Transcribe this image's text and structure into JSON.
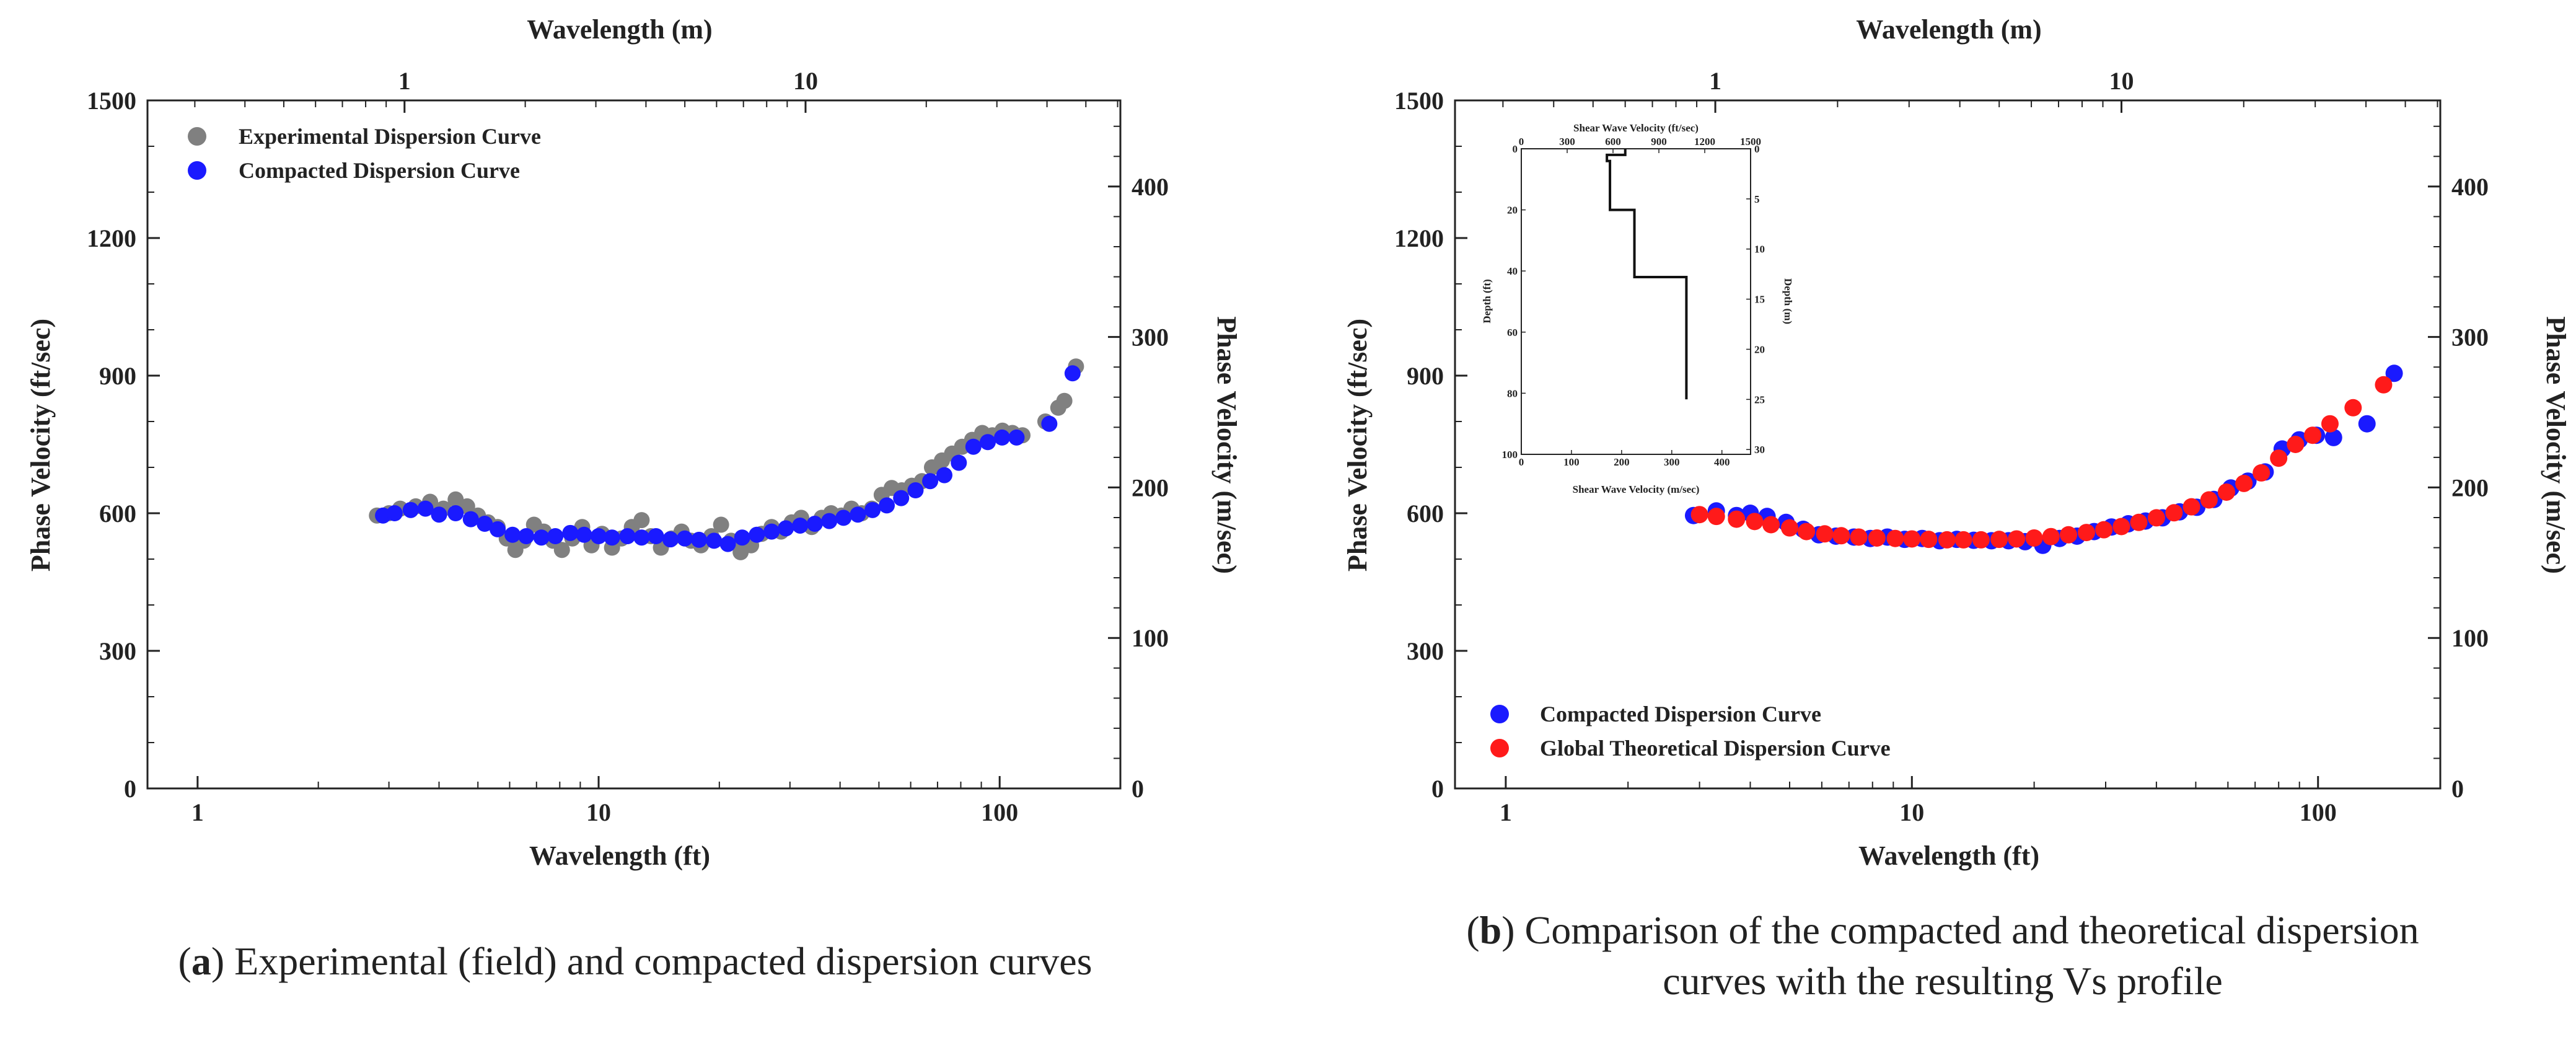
{
  "chart_data": [
    {
      "id": "a",
      "type": "scatter",
      "xscale": "log",
      "xlabel": "Wavelength (ft)",
      "xlim": [
        0.75,
        200
      ],
      "xticks": [
        1,
        10,
        100
      ],
      "xtick_labels": [
        "1",
        "10",
        "100"
      ],
      "x2label": "Wavelength (m)",
      "x2_ticks_m": [
        1,
        10
      ],
      "x2_tick_labels": [
        "1",
        "10"
      ],
      "ylabel": "Phase Velocity (ft/sec)",
      "ylim": [
        0,
        1500
      ],
      "yticks": [
        0,
        300,
        600,
        900,
        1200,
        1500
      ],
      "ytick_labels": [
        "0",
        "300",
        "600",
        "900",
        "1200",
        "1500"
      ],
      "y2label": "Phase Velocity (m/sec)",
      "y2_ticks_ms": [
        0,
        100,
        200,
        300,
        400
      ],
      "y2_tick_labels": [
        "0",
        "100",
        "200",
        "300",
        "400"
      ],
      "legend_position": "top-left",
      "series": [
        {
          "name": "Experimental Dispersion Curve",
          "color": "#808080",
          "points": [
            [
              2.8,
              595
            ],
            [
              3.0,
              600
            ],
            [
              3.2,
              610
            ],
            [
              3.5,
              615
            ],
            [
              3.8,
              625
            ],
            [
              4.1,
              610
            ],
            [
              4.4,
              630
            ],
            [
              4.7,
              615
            ],
            [
              5.0,
              595
            ],
            [
              5.3,
              580
            ],
            [
              5.6,
              570
            ],
            [
              5.9,
              545
            ],
            [
              6.2,
              520
            ],
            [
              6.5,
              540
            ],
            [
              6.9,
              575
            ],
            [
              7.3,
              560
            ],
            [
              7.7,
              540
            ],
            [
              8.1,
              520
            ],
            [
              8.6,
              545
            ],
            [
              9.1,
              570
            ],
            [
              9.6,
              530
            ],
            [
              10.2,
              555
            ],
            [
              10.8,
              525
            ],
            [
              11.4,
              545
            ],
            [
              12.1,
              570
            ],
            [
              12.8,
              585
            ],
            [
              13.5,
              550
            ],
            [
              14.3,
              525
            ],
            [
              15.2,
              545
            ],
            [
              16.1,
              560
            ],
            [
              17.0,
              540
            ],
            [
              18.0,
              530
            ],
            [
              19.1,
              550
            ],
            [
              20.2,
              575
            ],
            [
              21.4,
              540
            ],
            [
              22.6,
              515
            ],
            [
              24.0,
              530
            ],
            [
              25.5,
              555
            ],
            [
              27.0,
              570
            ],
            [
              28.5,
              560
            ],
            [
              30.3,
              580
            ],
            [
              32.0,
              590
            ],
            [
              34.0,
              570
            ],
            [
              36.0,
              590
            ],
            [
              38.0,
              600
            ],
            [
              40.3,
              595
            ],
            [
              42.7,
              610
            ],
            [
              45.3,
              600
            ],
            [
              48.0,
              610
            ],
            [
              50.8,
              640
            ],
            [
              53.8,
              655
            ],
            [
              57.0,
              650
            ],
            [
              60.4,
              660
            ],
            [
              64.0,
              670
            ],
            [
              67.8,
              700
            ],
            [
              71.8,
              715
            ],
            [
              76.1,
              730
            ],
            [
              80.6,
              745
            ],
            [
              85.4,
              760
            ],
            [
              90.5,
              775
            ],
            [
              95.9,
              770
            ],
            [
              101.6,
              780
            ],
            [
              107.6,
              775
            ],
            [
              114.0,
              770
            ],
            [
              130.0,
              800
            ],
            [
              140.0,
              830
            ],
            [
              145.0,
              845
            ],
            [
              155.0,
              920
            ]
          ]
        },
        {
          "name": "Compacted Dispersion Curve",
          "color": "#1a1aff",
          "points": [
            [
              2.9,
              595
            ],
            [
              3.1,
              600
            ],
            [
              3.4,
              607
            ],
            [
              3.7,
              610
            ],
            [
              4.0,
              597
            ],
            [
              4.4,
              600
            ],
            [
              4.8,
              587
            ],
            [
              5.2,
              577
            ],
            [
              5.6,
              565
            ],
            [
              6.1,
              553
            ],
            [
              6.6,
              550
            ],
            [
              7.2,
              547
            ],
            [
              7.8,
              550
            ],
            [
              8.5,
              557
            ],
            [
              9.2,
              553
            ],
            [
              10.0,
              550
            ],
            [
              10.8,
              547
            ],
            [
              11.8,
              550
            ],
            [
              12.8,
              547
            ],
            [
              13.9,
              550
            ],
            [
              15.1,
              543
            ],
            [
              16.4,
              545
            ],
            [
              17.8,
              542
            ],
            [
              19.4,
              540
            ],
            [
              21.0,
              533
            ],
            [
              22.8,
              547
            ],
            [
              24.8,
              553
            ],
            [
              27.0,
              560
            ],
            [
              29.3,
              567
            ],
            [
              31.8,
              573
            ],
            [
              34.6,
              577
            ],
            [
              37.6,
              583
            ],
            [
              40.8,
              590
            ],
            [
              44.3,
              597
            ],
            [
              48.2,
              607
            ],
            [
              52.3,
              617
            ],
            [
              56.8,
              633
            ],
            [
              61.7,
              650
            ],
            [
              67.1,
              670
            ],
            [
              72.8,
              683
            ],
            [
              79.1,
              710
            ],
            [
              86.0,
              745
            ],
            [
              93.4,
              755
            ],
            [
              101.4,
              765
            ],
            [
              110.2,
              765
            ],
            [
              133.0,
              795
            ],
            [
              152.0,
              905
            ]
          ]
        }
      ]
    },
    {
      "id": "b",
      "type": "scatter",
      "xscale": "log",
      "xlabel": "Wavelength (ft)",
      "xlim": [
        0.75,
        200
      ],
      "xticks": [
        1,
        10,
        100
      ],
      "xtick_labels": [
        "1",
        "10",
        "100"
      ],
      "x2label": "Wavelength (m)",
      "x2_ticks_m": [
        1,
        10
      ],
      "x2_tick_labels": [
        "1",
        "10"
      ],
      "ylabel": "Phase Velocity (ft/sec)",
      "ylim": [
        0,
        1500
      ],
      "yticks": [
        0,
        300,
        600,
        900,
        1200,
        1500
      ],
      "ytick_labels": [
        "0",
        "300",
        "600",
        "900",
        "1200",
        "1500"
      ],
      "y2label": "Phase Velocity (m/sec)",
      "y2_ticks_ms": [
        0,
        100,
        200,
        300,
        400
      ],
      "y2_tick_labels": [
        "0",
        "100",
        "200",
        "300",
        "400"
      ],
      "legend_position": "bottom-left",
      "series": [
        {
          "name": "Compacted Dispersion Curve",
          "color": "#1a1aff",
          "points": [
            [
              2.9,
              595
            ],
            [
              3.3,
              605
            ],
            [
              3.7,
              595
            ],
            [
              4.0,
              600
            ],
            [
              4.4,
              593
            ],
            [
              4.9,
              580
            ],
            [
              5.4,
              565
            ],
            [
              5.9,
              553
            ],
            [
              6.5,
              550
            ],
            [
              7.2,
              548
            ],
            [
              7.9,
              545
            ],
            [
              8.7,
              548
            ],
            [
              9.6,
              543
            ],
            [
              10.6,
              545
            ],
            [
              11.7,
              540
            ],
            [
              12.9,
              543
            ],
            [
              14.2,
              541
            ],
            [
              15.7,
              540
            ],
            [
              17.3,
              540
            ],
            [
              19.0,
              538
            ],
            [
              21.0,
              530
            ],
            [
              23.1,
              545
            ],
            [
              25.5,
              550
            ],
            [
              28.1,
              560
            ],
            [
              31.0,
              570
            ],
            [
              34.1,
              577
            ],
            [
              37.6,
              583
            ],
            [
              41.4,
              590
            ],
            [
              45.6,
              603
            ],
            [
              50.3,
              613
            ],
            [
              55.4,
              630
            ],
            [
              61.0,
              655
            ],
            [
              67.2,
              670
            ],
            [
              74.1,
              690
            ],
            [
              81.6,
              740
            ],
            [
              89.9,
              760
            ],
            [
              99.1,
              770
            ],
            [
              109.2,
              765
            ],
            [
              132.0,
              795
            ],
            [
              154.0,
              905
            ]
          ]
        },
        {
          "name": "Global Theoretical Dispersion Curve",
          "color": "#ff1a1a",
          "points": [
            [
              3.0,
              597
            ],
            [
              3.3,
              593
            ],
            [
              3.7,
              587
            ],
            [
              4.1,
              582
            ],
            [
              4.5,
              575
            ],
            [
              5.0,
              568
            ],
            [
              5.5,
              560
            ],
            [
              6.1,
              555
            ],
            [
              6.7,
              551
            ],
            [
              7.4,
              548
            ],
            [
              8.2,
              546
            ],
            [
              9.1,
              545
            ],
            [
              10.0,
              544
            ],
            [
              11.0,
              543
            ],
            [
              12.2,
              542
            ],
            [
              13.4,
              542
            ],
            [
              14.8,
              542
            ],
            [
              16.4,
              543
            ],
            [
              18.1,
              544
            ],
            [
              20.0,
              546
            ],
            [
              22.0,
              549
            ],
            [
              24.3,
              553
            ],
            [
              26.9,
              558
            ],
            [
              29.7,
              564
            ],
            [
              32.8,
              571
            ],
            [
              36.2,
              580
            ],
            [
              40.0,
              590
            ],
            [
              44.2,
              601
            ],
            [
              48.8,
              614
            ],
            [
              53.9,
              629
            ],
            [
              59.5,
              646
            ],
            [
              65.7,
              665
            ],
            [
              72.5,
              688
            ],
            [
              80.0,
              720
            ],
            [
              88.0,
              750
            ],
            [
              97.0,
              770
            ],
            [
              107.0,
              795
            ],
            [
              122.0,
              830
            ],
            [
              145.0,
              880
            ]
          ]
        }
      ],
      "inset": {
        "title_top": "Shear Wave Velocity (ft/sec)",
        "title_bottom": "Shear Wave Velocity (m/sec)",
        "ylabel_left": "Depth (ft)",
        "ylabel_right": "Depth (m)",
        "x_ft_range": [
          0,
          1500
        ],
        "x_ft_ticks": [
          0,
          300,
          600,
          900,
          1200,
          1500
        ],
        "x_ft_tick_labels": [
          "0",
          "300",
          "600",
          "900",
          "1200",
          "1500"
        ],
        "x_m_ticks": [
          0,
          100,
          200,
          300,
          400
        ],
        "x_m_tick_labels": [
          "0",
          "100",
          "200",
          "300",
          "400"
        ],
        "depth_ft_range": [
          0,
          100
        ],
        "depth_ft_ticks": [
          0,
          20,
          40,
          60,
          80,
          100
        ],
        "depth_ft_tick_labels": [
          "0",
          "20",
          "40",
          "60",
          "80",
          "100"
        ],
        "depth_m_ticks": [
          0,
          5,
          10,
          15,
          20,
          25,
          30
        ],
        "depth_m_tick_labels": [
          "0",
          "5",
          "10",
          "15",
          "20",
          "25",
          "30"
        ],
        "profile_vs_ftps": [
          680,
          560,
          580,
          740,
          1080
        ],
        "profile_layer_bottoms_ft": [
          2,
          4,
          20,
          42,
          82
        ]
      }
    }
  ],
  "captions": {
    "a": {
      "letter": "a",
      "text": " Experimental (field) and compacted dispersion curves"
    },
    "b": {
      "letter": "b",
      "text_line1": " Comparison of the compacted and theoretical dispersion",
      "text_line2": "curves with the resulting Vs profile"
    }
  }
}
